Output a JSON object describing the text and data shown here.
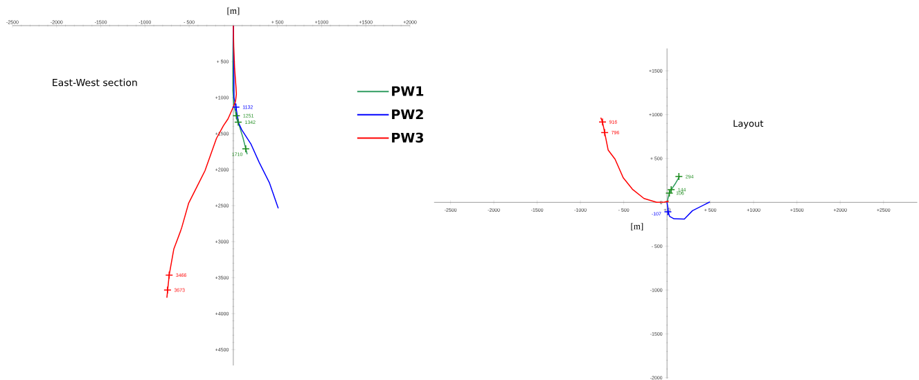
{
  "chart_data": [
    {
      "type": "line",
      "title": "East-West section",
      "xlabel": "[m]",
      "xlim": [
        -2500,
        2000
      ],
      "ylim": [
        4720,
        0
      ],
      "marker": "none",
      "legend": "right",
      "xticks": [
        -2500,
        -2000,
        -1500,
        -1000,
        {
          "value": -500,
          "label": "- 500"
        },
        {
          "value": 0,
          "label": null
        },
        {
          "value": 500,
          "label": "+ 500"
        },
        {
          "value": 1000,
          "label": "+1000"
        },
        {
          "value": 1500,
          "label": "+1500"
        },
        {
          "value": 2000,
          "label": "+2000"
        }
      ],
      "yticks": [
        {
          "value": 500,
          "label": "+ 500"
        },
        {
          "value": 1000,
          "label": "+1000"
        },
        {
          "value": 1500,
          "label": "+1500"
        },
        {
          "value": 2000,
          "label": "+2000"
        },
        {
          "value": 2500,
          "label": "+2500"
        },
        {
          "value": 3000,
          "label": "+3000"
        },
        {
          "value": 3500,
          "label": "+3500"
        },
        {
          "value": 4000,
          "label": "+4000"
        },
        {
          "value": 4500,
          "label": "+4500"
        }
      ],
      "series": [
        {
          "name": "PW1",
          "color": "#2e9b5f",
          "x": [
            0,
            -5,
            -5,
            5,
            25,
            40,
            70,
            110,
            141,
            157
          ],
          "values": [
            0,
            500,
            900,
            1100,
            1200,
            1300,
            1400,
            1560,
            1710,
            1785
          ]
        },
        {
          "name": "PW2",
          "color": "#0000ff",
          "x": [
            0,
            5,
            8,
            30,
            57,
            96,
            201,
            292,
            410,
            509
          ],
          "values": [
            0,
            500,
            1000,
            1132,
            1343,
            1448,
            1648,
            1897,
            2186,
            2538
          ]
        },
        {
          "name": "PW3",
          "color": "#ff0000",
          "x": [
            0,
            5,
            15,
            30,
            35,
            25,
            0,
            -60,
            -112,
            -191,
            -321,
            -426,
            -505,
            -583,
            -596,
            -674,
            -726,
            -752
          ],
          "values": [
            0,
            300,
            600,
            850,
            950,
            1050,
            1130,
            1295,
            1391,
            1567,
            2016,
            2272,
            2464,
            2801,
            2849,
            3106,
            3465,
            3779
          ]
        },
        {
          "type": "scatter",
          "marker": "cross",
          "data_labels": true,
          "color": "#0000ff",
          "x": [
            30
          ],
          "values": [
            1132
          ]
        },
        {
          "type": "scatter",
          "marker": "cross",
          "data_labels": true,
          "color": "#1a8a1a",
          "x": [
            35,
            55,
            141
          ],
          "values": [
            1251,
            1342,
            1710
          ]
        },
        {
          "type": "scatter",
          "marker": "cross",
          "data_labels": true,
          "color": "#ff0000",
          "x": [
            -726,
            -745
          ],
          "values": [
            3466,
            3673
          ]
        }
      ]
    },
    {
      "type": "line",
      "title": "Layout",
      "xlabel": "[m]",
      "xlim": [
        -2690,
        2890
      ],
      "ylim": [
        -2010,
        1755
      ],
      "marker": "none",
      "xticks": [
        -2500,
        -2000,
        -1500,
        -1000,
        {
          "value": -500,
          "label": "- 500"
        },
        {
          "value": 0,
          "label": "+ 0"
        },
        {
          "value": 500,
          "label": "+ 500"
        },
        {
          "value": 1000,
          "label": "+1000"
        },
        {
          "value": 1500,
          "label": "+1500"
        },
        {
          "value": 2000,
          "label": "+2000"
        },
        {
          "value": 2500,
          "label": "+2500"
        }
      ],
      "yticks": [
        -2000,
        -1500,
        -1000,
        {
          "value": -500,
          "label": "- 500"
        },
        0,
        {
          "value": 500,
          "label": "+ 500"
        },
        {
          "value": 1000,
          "label": "+1000"
        },
        {
          "value": 1500,
          "label": "+1500"
        }
      ],
      "series": [
        {
          "color": "#2e9b5f",
          "x": [
            0,
            27,
            48,
            100,
            147
          ],
          "values": [
            0,
            106,
            144,
            220,
            300
          ]
        },
        {
          "color": "#0000ff",
          "x": [
            0,
            10,
            14,
            30,
            80,
            200,
            294,
            494
          ],
          "values": [
            0,
            -60,
            -108,
            -160,
            -187,
            -190,
            -95,
            5
          ]
        },
        {
          "color": "#ff0000",
          "x": [
            0,
            15,
            -30,
            -120,
            -266,
            -400,
            -506,
            -600,
            -680,
            -720,
            -745,
            -765
          ],
          "values": [
            0,
            15,
            2,
            0,
            44,
            150,
            281,
            492,
            597,
            795,
            916,
            966
          ]
        },
        {
          "type": "scatter",
          "marker": "cross",
          "data_labels": true,
          "color": "#1a8a1a",
          "x": [
            27,
            48,
            137
          ],
          "values": [
            106,
            144,
            294
          ]
        },
        {
          "type": "scatter",
          "marker": "cross",
          "data_labels": true,
          "color": "#0000ff",
          "x": [
            10
          ],
          "values": [
            -107
          ]
        },
        {
          "type": "scatter",
          "marker": "cross",
          "data_labels": true,
          "color": "#ff0000",
          "x": [
            -720,
            -745
          ],
          "values": [
            796,
            916
          ]
        }
      ]
    }
  ]
}
